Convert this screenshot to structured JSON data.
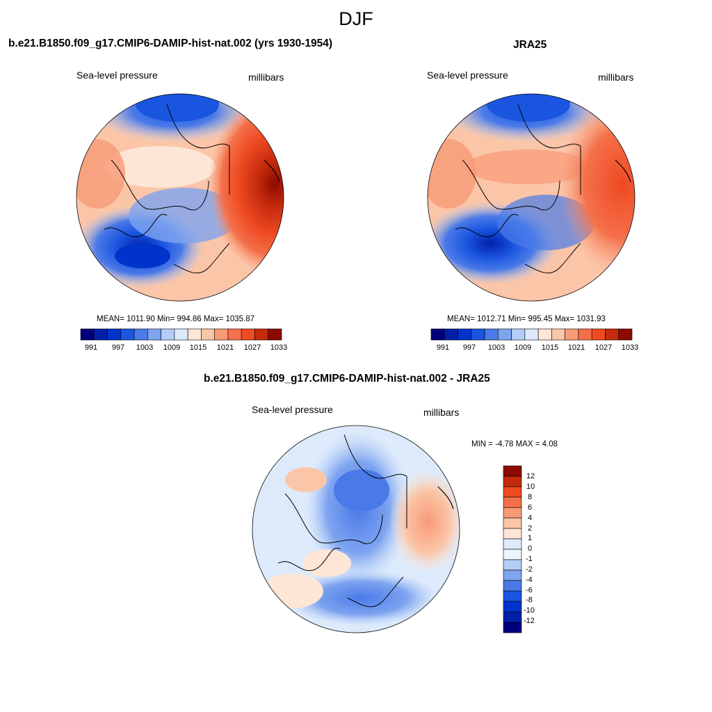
{
  "figure": {
    "title": "DJF"
  },
  "panels": [
    {
      "title": "b.e21.B1850.f09_g17.CMIP6-DAMIP-hist-nat.002 (yrs 1930-1954)",
      "left_label": "Sea-level pressure",
      "right_label": "millibars",
      "stats": "MEAN= 1011.90  Min= 994.86  Max= 1035.87",
      "colorbar_ticks": [
        "991",
        "997",
        "1003",
        "1009",
        "1015",
        "1021",
        "1027",
        "1033"
      ]
    },
    {
      "title": "JRA25",
      "left_label": "Sea-level pressure",
      "right_label": "millibars",
      "stats": "MEAN= 1012.71  Min= 995.45  Max= 1031.93",
      "colorbar_ticks": [
        "991",
        "997",
        "1003",
        "1009",
        "1015",
        "1021",
        "1027",
        "1033"
      ]
    },
    {
      "title": "b.e21.B1850.f09_g17.CMIP6-DAMIP-hist-nat.002 - JRA25",
      "left_label": "Sea-level pressure",
      "right_label": "millibars",
      "stats": "MIN =  -4.78 MAX =   4.08",
      "colorbar_ticks": [
        "12",
        "10",
        "8",
        "6",
        "4",
        "2",
        "1",
        "0",
        "-1",
        "-2",
        "-4",
        "-6",
        "-8",
        "-10",
        "-12"
      ]
    }
  ],
  "palette": [
    "#00007f",
    "#0020a8",
    "#0033cc",
    "#1a55e0",
    "#4a7ae8",
    "#7ea4f0",
    "#b2cdf7",
    "#ddeafb",
    "#fde6d6",
    "#fbc5a8",
    "#f89a76",
    "#f4704a",
    "#ee4a22",
    "#c42a0c",
    "#8c0a02"
  ]
}
